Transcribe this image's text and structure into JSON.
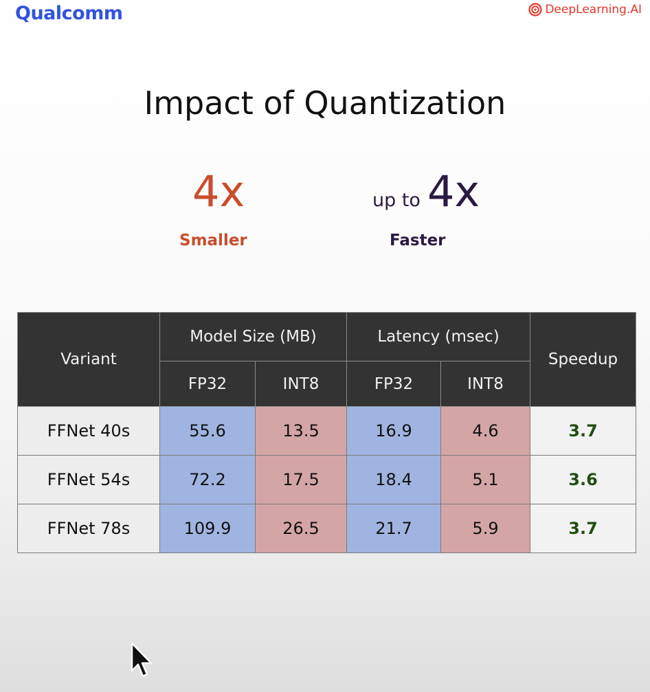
{
  "brand_left": "Qualcomm",
  "brand_right": "DeepLearning.AI",
  "title": "Impact of Quantization",
  "stats": {
    "smaller": {
      "value": "4x",
      "label": "Smaller"
    },
    "faster": {
      "prefix": "up to",
      "value": "4x",
      "label": "Faster"
    }
  },
  "colors": {
    "smaller": "#c94d2c",
    "faster": "#2b1a43",
    "fp32_cell": "#9fb4e0",
    "int8_cell": "#d4a5a5",
    "speedup_text": "#234d14",
    "header_bg": "#333333"
  },
  "table": {
    "headers": {
      "variant": "Variant",
      "model_size": "Model Size (MB)",
      "latency": "Latency (msec)",
      "speedup": "Speedup",
      "fp32": "FP32",
      "int8": "INT8"
    },
    "rows": [
      {
        "variant": "FFNet 40s",
        "size_fp32": "55.6",
        "size_int8": "13.5",
        "lat_fp32": "16.9",
        "lat_int8": "4.6",
        "speedup": "3.7"
      },
      {
        "variant": "FFNet 54s",
        "size_fp32": "72.2",
        "size_int8": "17.5",
        "lat_fp32": "18.4",
        "lat_int8": "5.1",
        "speedup": "3.6"
      },
      {
        "variant": "FFNet 78s",
        "size_fp32": "109.9",
        "size_int8": "26.5",
        "lat_fp32": "21.7",
        "lat_int8": "5.9",
        "speedup": "3.7"
      }
    ]
  },
  "icons": {
    "brand_mark": "deeplearning-logo-icon",
    "pointer": "mouse-pointer-icon"
  }
}
